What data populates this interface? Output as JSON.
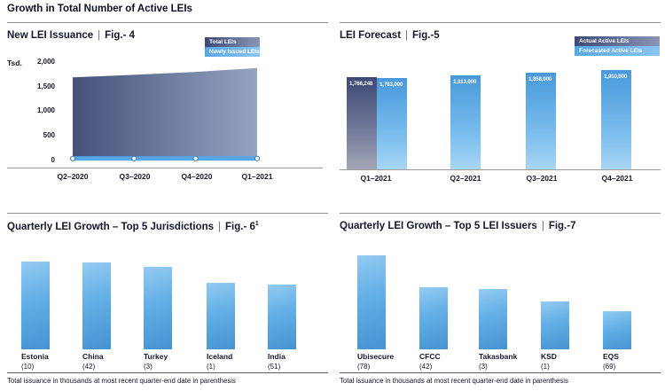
{
  "page": {
    "title": "Growth in Total Number of Active LEIs",
    "sep": "|"
  },
  "colors": {
    "dark_navy": "#3d4975",
    "navy_fade": "#8a95b5",
    "light_blue": "#58a8e6",
    "bar_blue": "#4693d3",
    "text": "#15152e"
  },
  "chart_data": [
    {
      "type": "area",
      "title": "New LEI Issuance",
      "fig": "Fig.- 4",
      "unit": "Tsd.",
      "x": [
        "Q2–2020",
        "Q3–2020",
        "Q4–2020",
        "Q1–2021"
      ],
      "ylim": [
        0,
        2000
      ],
      "yticks": [
        "2,000",
        "1,500",
        "1,000",
        "500",
        "0"
      ],
      "legend": [
        "Total LEIs",
        "Newly Issued LEIs"
      ],
      "legend_position": "top-right",
      "grid": false,
      "series": [
        {
          "name": "Total LEIs",
          "values": [
            1690,
            1740,
            1800,
            1880
          ]
        },
        {
          "name": "Newly Issued LEIs",
          "values": [
            40,
            40,
            40,
            40
          ]
        }
      ]
    },
    {
      "type": "bar",
      "title": "LEI Forecast",
      "fig": "Fig.-5",
      "categories": [
        "Q1–2021",
        "Q2–2021",
        "Q3–2021",
        "Q4–2021"
      ],
      "legend": [
        "Actual Active LEIs",
        "Forecasted Active LEIs"
      ],
      "legend_position": "top-right",
      "grid": false,
      "bars": [
        {
          "category": "Q1–2021",
          "series": "Actual Active LEIs",
          "value": 1766248,
          "label": "1,766,248"
        },
        {
          "category": "Q1–2021",
          "series": "Forecasted Active LEIs",
          "value": 1763000,
          "label": "1,763,000"
        },
        {
          "category": "Q2–2021",
          "series": "Forecasted Active LEIs",
          "value": 1813000,
          "label": "1,813,000"
        },
        {
          "category": "Q3–2021",
          "series": "Forecasted Active LEIs",
          "value": 1858000,
          "label": "1,858,000"
        },
        {
          "category": "Q4–2021",
          "series": "Forecasted Active LEIs",
          "value": 1910000,
          "label": "1,910,000"
        }
      ]
    },
    {
      "type": "bar",
      "title": "Quarterly LEI Growth – Top 5 Jurisdictions",
      "fig": "Fig.- 6",
      "fig_sup": "1",
      "grid": false,
      "points": [
        {
          "name": "Estonia",
          "count": "(10)",
          "value": 12.1,
          "pct": "12.1%"
        },
        {
          "name": "China",
          "count": "(42)",
          "value": 12.0,
          "pct": "12.0%"
        },
        {
          "name": "Turkey",
          "count": "(3)",
          "value": 11.4,
          "pct": "11.4%"
        },
        {
          "name": "Iceland",
          "count": "(1)",
          "value": 9.2,
          "pct": "9.2%"
        },
        {
          "name": "India",
          "count": "(51)",
          "value": 8.9,
          "pct": "8.9%"
        }
      ],
      "footnote": "Total issuance in thousands at most recent quarter-end date in parenthesis"
    },
    {
      "type": "bar",
      "title": "Quarterly LEI Growth – Top 5 LEI Issuers",
      "fig": "Fig.-7",
      "grid": false,
      "points": [
        {
          "name": "Ubisecure",
          "count": "(78)",
          "value": 18.3,
          "pct": "18.3%"
        },
        {
          "name": "CFCC",
          "count": "(42)",
          "value": 12.1,
          "pct": "12.1%"
        },
        {
          "name": "Takasbank",
          "count": "(3)",
          "value": 11.8,
          "pct": "11.8%"
        },
        {
          "name": "KSD",
          "count": "(1)",
          "value": 9.3,
          "pct": "9.3%"
        },
        {
          "name": "EQS",
          "count": "(69)",
          "value": 7.4,
          "pct": "7.4%"
        }
      ],
      "footnote": "Total issuance in thousands at most recent quarter-end date in parenthesis"
    }
  ]
}
